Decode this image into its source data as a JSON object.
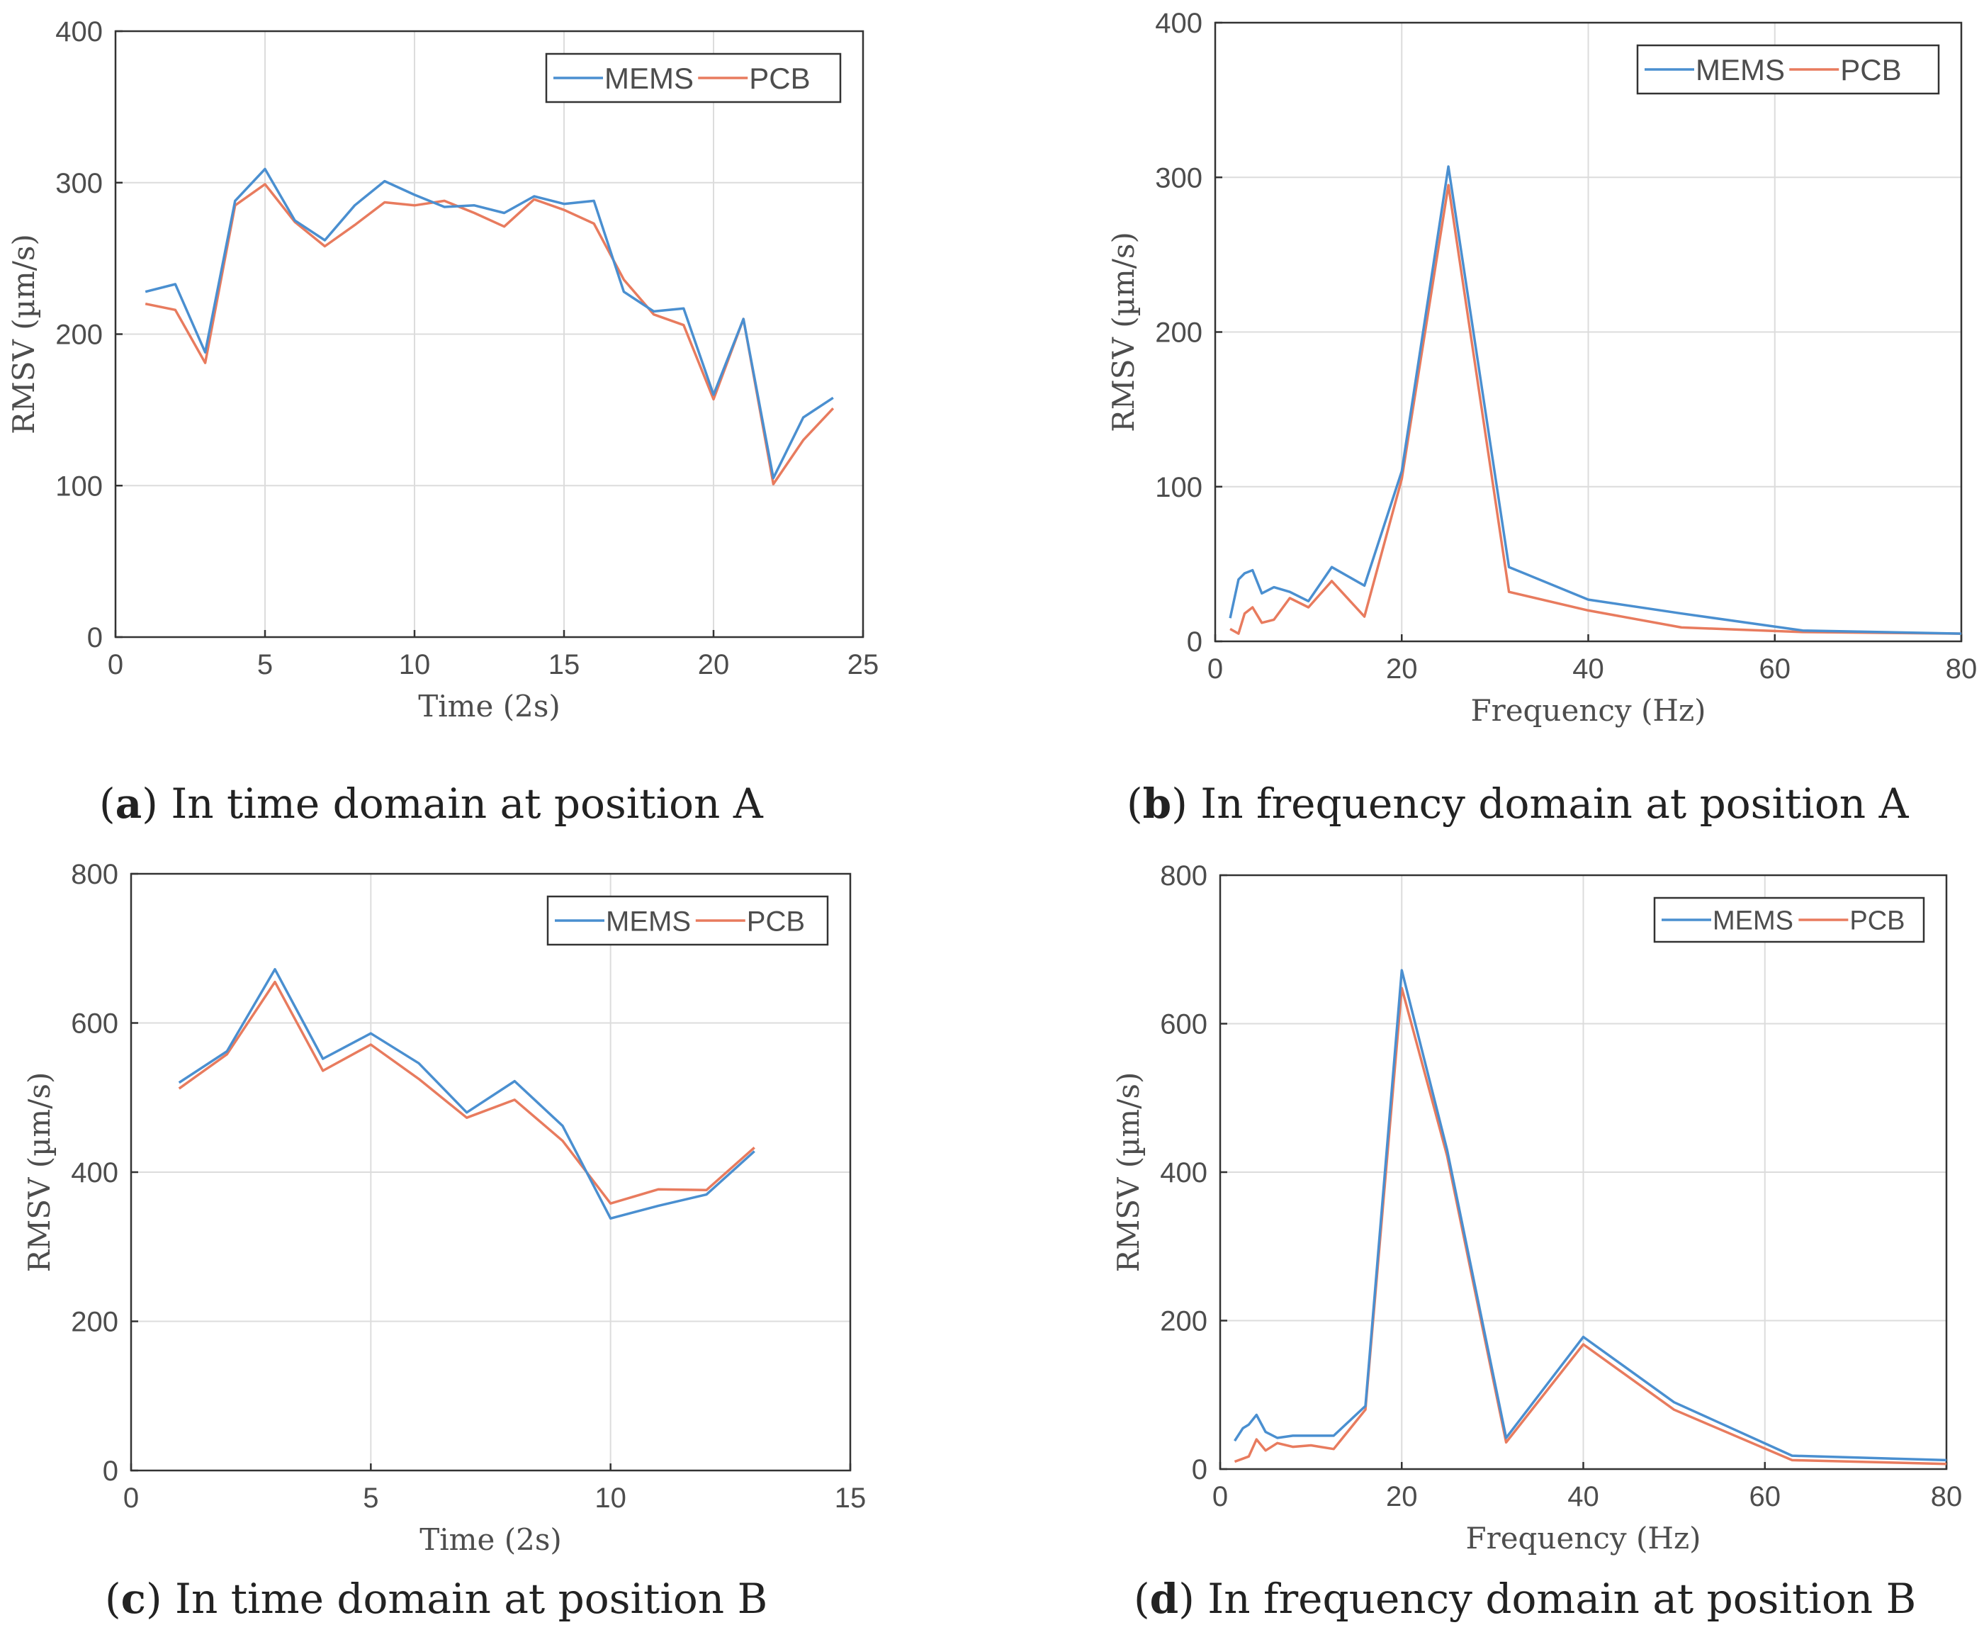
{
  "figure": {
    "captions": [
      {
        "letter": "a",
        "text": "In time domain at position A"
      },
      {
        "letter": "b",
        "text": "In frequency domain at position A"
      },
      {
        "letter": "c",
        "text": "In time domain at position B"
      },
      {
        "letter": "d",
        "text": "In frequency domain at position B"
      }
    ]
  },
  "colors": {
    "mems": "#4a8fd0",
    "pcb": "#e87b5e",
    "grid": "#dcdcdc",
    "axis": "#333333",
    "text": "#4d4d4d"
  },
  "chart_data": [
    {
      "id": "a",
      "type": "line",
      "xlabel": "Time (2s)",
      "ylabel": "RMSV (µm/s)",
      "xlim": [
        0,
        25
      ],
      "ylim": [
        0,
        400
      ],
      "xticks": [
        0,
        5,
        10,
        15,
        20,
        25
      ],
      "yticks": [
        0,
        100,
        200,
        300,
        400
      ],
      "grid": true,
      "legend": "top-right",
      "series": [
        {
          "name": "MEMS",
          "color": "#4a8fd0",
          "x": [
            1,
            2,
            3,
            4,
            5,
            6,
            7,
            8,
            9,
            10,
            11,
            12,
            13,
            14,
            15,
            16,
            17,
            18,
            19,
            20,
            21,
            22,
            23,
            24
          ],
          "values": [
            228,
            233,
            188,
            288,
            309,
            275,
            262,
            285,
            301,
            292,
            284,
            285,
            280,
            291,
            286,
            288,
            228,
            215,
            217,
            160,
            210,
            105,
            145,
            158
          ]
        },
        {
          "name": "PCB",
          "color": "#e87b5e",
          "x": [
            1,
            2,
            3,
            4,
            5,
            6,
            7,
            8,
            9,
            10,
            11,
            12,
            13,
            14,
            15,
            16,
            17,
            18,
            19,
            20,
            21,
            22,
            23,
            24
          ],
          "values": [
            220,
            216,
            181,
            285,
            299,
            274,
            258,
            272,
            287,
            285,
            288,
            280,
            271,
            289,
            282,
            273,
            236,
            213,
            206,
            157,
            210,
            101,
            130,
            151
          ]
        }
      ]
    },
    {
      "id": "b",
      "type": "line",
      "xlabel": "Frequency (Hz)",
      "ylabel": "RMSV (µm/s)",
      "xlim": [
        0,
        80
      ],
      "ylim": [
        0,
        400
      ],
      "xticks": [
        0,
        20,
        40,
        60,
        80
      ],
      "yticks": [
        0,
        100,
        200,
        300,
        400
      ],
      "grid": true,
      "legend": "top-right",
      "series": [
        {
          "name": "MEMS",
          "color": "#4a8fd0",
          "x": [
            1.6,
            2.5,
            3.15,
            4,
            5,
            6.3,
            8,
            10,
            12.5,
            16,
            20,
            25,
            31.5,
            40,
            50,
            63,
            80
          ],
          "values": [
            15,
            40,
            44,
            46,
            31,
            35,
            32,
            26,
            48,
            36,
            110,
            307,
            48,
            27,
            18,
            7,
            5
          ]
        },
        {
          "name": "PCB",
          "color": "#e87b5e",
          "x": [
            1.6,
            2.5,
            3.15,
            4,
            5,
            6.3,
            8,
            10,
            12.5,
            16,
            20,
            25,
            31.5,
            40,
            50,
            63,
            80
          ],
          "values": [
            8,
            5,
            18,
            22,
            12,
            14,
            28,
            22,
            39,
            16,
            105,
            295,
            32,
            20,
            9,
            6,
            5
          ]
        }
      ]
    },
    {
      "id": "c",
      "type": "line",
      "xlabel": "Time (2s)",
      "ylabel": "RMSV (µm/s)",
      "xlim": [
        0,
        15
      ],
      "ylim": [
        0,
        800
      ],
      "xticks": [
        0,
        5,
        10,
        15
      ],
      "yticks": [
        0,
        200,
        400,
        600,
        800
      ],
      "grid": true,
      "legend": "top-right",
      "series": [
        {
          "name": "MEMS",
          "color": "#4a8fd0",
          "x": [
            1,
            2,
            3,
            4,
            5,
            6,
            7,
            8,
            9,
            10,
            11,
            12,
            13
          ],
          "values": [
            520,
            562,
            672,
            552,
            586,
            546,
            480,
            522,
            462,
            338,
            355,
            370,
            428
          ]
        },
        {
          "name": "PCB",
          "color": "#e87b5e",
          "x": [
            1,
            2,
            3,
            4,
            5,
            6,
            7,
            8,
            9,
            10,
            11,
            12,
            13
          ],
          "values": [
            512,
            558,
            655,
            536,
            571,
            525,
            473,
            497,
            442,
            358,
            377,
            376,
            433
          ]
        }
      ]
    },
    {
      "id": "d",
      "type": "line",
      "xlabel": "Frequency (Hz)",
      "ylabel": "RMSV (µm/s)",
      "xlim": [
        0,
        80
      ],
      "ylim": [
        0,
        800
      ],
      "xticks": [
        0,
        20,
        40,
        60,
        80
      ],
      "yticks": [
        0,
        200,
        400,
        600,
        800
      ],
      "grid": true,
      "legend": "top-right",
      "series": [
        {
          "name": "MEMS",
          "color": "#4a8fd0",
          "x": [
            1.6,
            2.5,
            3.15,
            4,
            5,
            6.3,
            8,
            10,
            12.5,
            16,
            20,
            25,
            31.5,
            40,
            50,
            63,
            80
          ],
          "values": [
            38,
            55,
            60,
            73,
            50,
            42,
            45,
            45,
            45,
            85,
            672,
            430,
            42,
            178,
            90,
            18,
            12
          ]
        },
        {
          "name": "PCB",
          "color": "#e87b5e",
          "x": [
            1.6,
            2.5,
            3.15,
            4,
            5,
            6.3,
            8,
            10,
            12.5,
            16,
            20,
            25,
            31.5,
            40,
            50,
            63,
            80
          ],
          "values": [
            10,
            14,
            17,
            40,
            25,
            35,
            30,
            32,
            27,
            80,
            648,
            422,
            36,
            168,
            80,
            12,
            7
          ]
        }
      ]
    }
  ]
}
